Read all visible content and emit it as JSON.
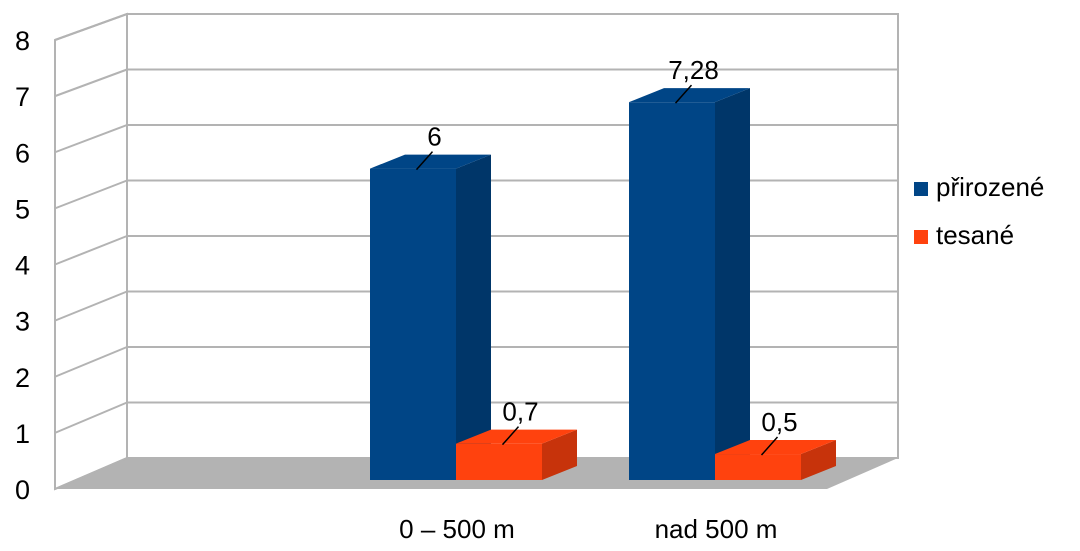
{
  "chart_data": {
    "type": "bar",
    "categories": [
      "0 – 500 m",
      "nad 500 m"
    ],
    "series": [
      {
        "name": "přirozené",
        "color": "#004586",
        "values": [
          6,
          7.28
        ],
        "labels": [
          "6",
          "7,28"
        ]
      },
      {
        "name": "tesané",
        "color": "#ff420e",
        "values": [
          0.7,
          0.5
        ],
        "labels": [
          "0,7",
          "0,5"
        ]
      }
    ],
    "y_ticks": [
      "0",
      "1",
      "2",
      "3",
      "4",
      "5",
      "6",
      "7",
      "8"
    ],
    "ylim": [
      0,
      8
    ],
    "grid": true,
    "three_d": true,
    "legend_position": "right",
    "title": "",
    "xlabel": "",
    "ylabel": ""
  }
}
